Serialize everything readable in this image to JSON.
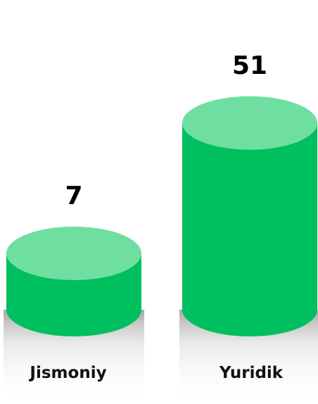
{
  "chart_data": {
    "type": "bar",
    "categories": [
      "Jismoniy",
      "Yuridik"
    ],
    "values": [
      7,
      51
    ],
    "colors": {
      "body": "#00BF5F",
      "top": "#6EDFA0",
      "platform": "#C8C8C8"
    }
  }
}
